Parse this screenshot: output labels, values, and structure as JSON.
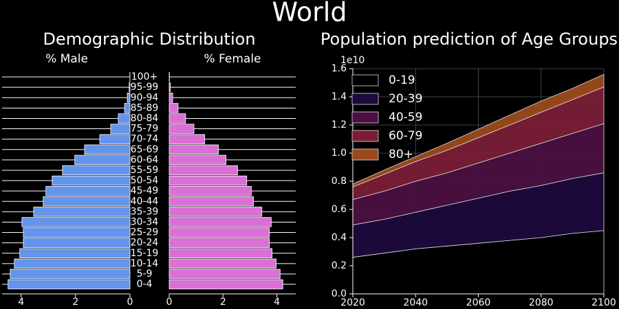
{
  "title": "World",
  "chart_data": [
    {
      "type": "pyramid",
      "title": "Demographic Distribution",
      "grid": true,
      "categories": [
        "0-4",
        "5-9",
        "10-14",
        "15-19",
        "20-24",
        "25-29",
        "30-34",
        "35-39",
        "40-44",
        "45-49",
        "50-54",
        "55-59",
        "60-64",
        "65-69",
        "70-74",
        "75-79",
        "80-84",
        "85-89",
        "90-94",
        "95-99",
        "100+"
      ],
      "series": [
        {
          "name": "% Male",
          "color": "#6495ed",
          "xlim": [
            0,
            4.7
          ],
          "xticks": [
            0,
            2,
            4
          ],
          "values": [
            4.48,
            4.4,
            4.25,
            4.05,
            3.92,
            3.92,
            3.97,
            3.54,
            3.19,
            3.09,
            2.86,
            2.48,
            2.03,
            1.67,
            1.11,
            0.71,
            0.43,
            0.2,
            0.1,
            0.03,
            0.005
          ]
        },
        {
          "name": "% Female",
          "color": "#da70d6",
          "xlim": [
            0,
            4.7
          ],
          "xticks": [
            0,
            2,
            4
          ],
          "values": [
            4.22,
            4.12,
            3.97,
            3.82,
            3.72,
            3.72,
            3.79,
            3.44,
            3.13,
            3.05,
            2.88,
            2.54,
            2.11,
            1.83,
            1.32,
            0.92,
            0.61,
            0.33,
            0.13,
            0.04,
            0.01
          ]
        }
      ]
    },
    {
      "type": "area",
      "stacked": true,
      "title": "Population prediction of Age Groups",
      "grid": true,
      "legend": "upper left",
      "y_offset_label": "1e10",
      "x": [
        2020,
        2030,
        2040,
        2050,
        2060,
        2070,
        2080,
        2090,
        2100
      ],
      "xlim": [
        2020,
        2100
      ],
      "xticks": [
        2020,
        2040,
        2060,
        2080,
        2100
      ],
      "ylim": [
        0,
        1.6
      ],
      "yticks": [
        {
          "value": 0,
          "label": "0.0"
        },
        0.2,
        0.4,
        0.6,
        0.8,
        {
          "value": 1,
          "label": "1.0"
        },
        1.2,
        1.4,
        1.6
      ],
      "series": [
        {
          "name": "0-19",
          "color": "#000000",
          "values": [
            0.26,
            0.29,
            0.32,
            0.34,
            0.36,
            0.38,
            0.4,
            0.43,
            0.45
          ]
        },
        {
          "name": "20-39",
          "color": "#1c0a3c",
          "values": [
            0.23,
            0.24,
            0.26,
            0.29,
            0.32,
            0.35,
            0.37,
            0.39,
            0.41
          ]
        },
        {
          "name": "40-59",
          "color": "#4a1040",
          "values": [
            0.18,
            0.2,
            0.22,
            0.23,
            0.25,
            0.27,
            0.3,
            0.32,
            0.35
          ]
        },
        {
          "name": "60-79",
          "color": "#7a1e36",
          "values": [
            0.09,
            0.12,
            0.14,
            0.16,
            0.18,
            0.2,
            0.22,
            0.24,
            0.26
          ]
        },
        {
          "name": "80+",
          "color": "#9c4a1c",
          "values": [
            0.02,
            0.03,
            0.035,
            0.05,
            0.06,
            0.07,
            0.08,
            0.08,
            0.09
          ]
        }
      ]
    }
  ]
}
